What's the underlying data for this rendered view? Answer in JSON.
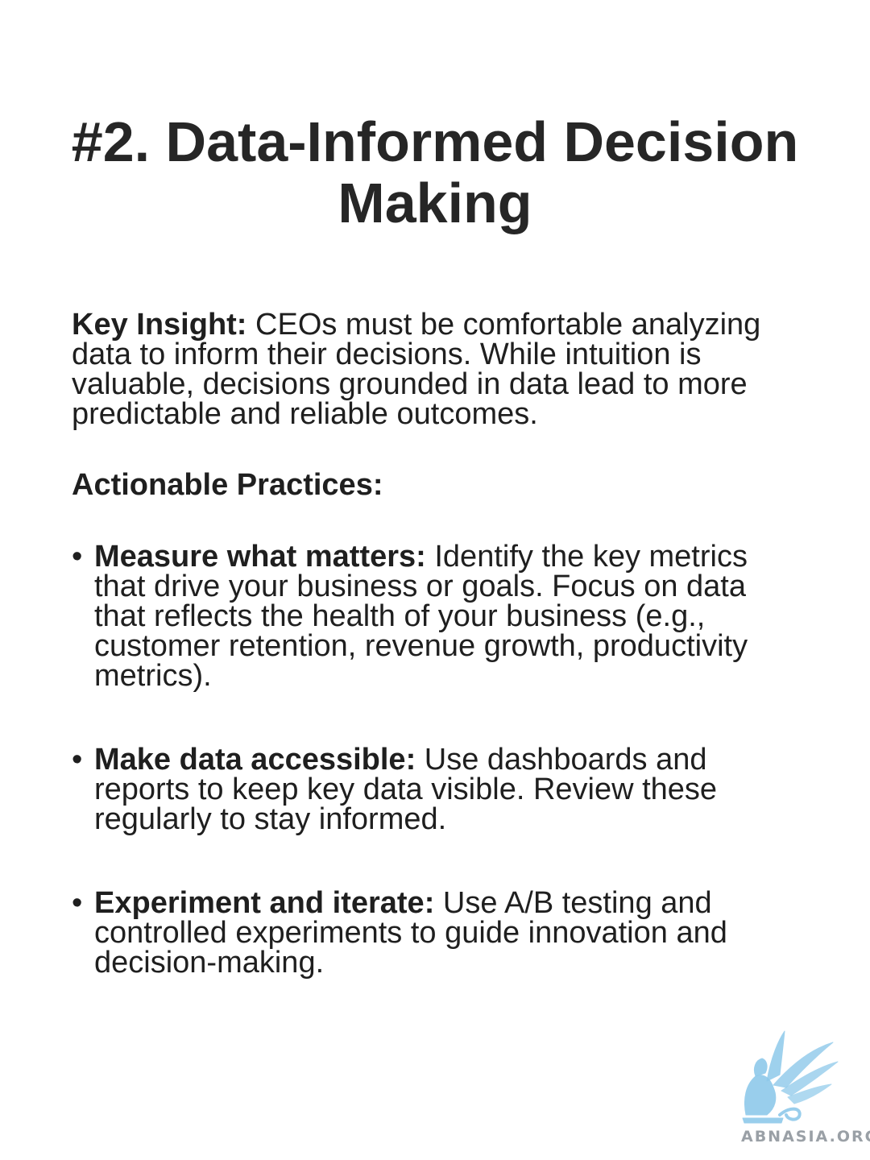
{
  "title": "#2. Data-Informed Decision Making",
  "key_insight": {
    "label": "Key Insight:",
    "text": " CEOs must be comfortable analyzing data to inform their decisions. While intuition is valuable, decisions grounded in data lead to more predictable and reliable outcomes."
  },
  "practices_heading": "Actionable Practices:",
  "practices": [
    {
      "bullet": "•",
      "label": "Measure what matters:",
      "text": " Identify the key metrics that drive your business or goals. Focus on data that reflects the health of your business (e.g., customer retention, revenue growth, productivity metrics)."
    },
    {
      "bullet": "•",
      "label": "Make data accessible:",
      "text": " Use dashboards and reports to keep key data visible. Review these regularly to stay informed."
    },
    {
      "bullet": "•",
      "label": "Experiment and iterate:",
      "text": " Use A/B testing and controlled experiments to guide innovation and decision-making."
    }
  ],
  "logo": {
    "icon": "griffin-logo-icon",
    "text": "ABNASIA.ORG",
    "color": "#8ec9ea"
  }
}
